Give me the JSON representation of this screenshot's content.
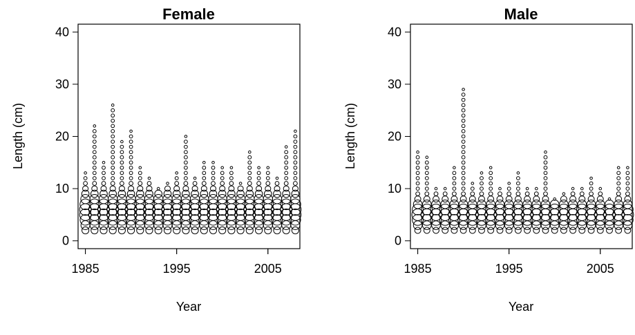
{
  "chart_data": [
    {
      "type": "scatter",
      "subtype": "bubble",
      "title": "Female",
      "xlabel": "Year",
      "ylabel": "Length (cm)",
      "xlim": [
        1984.2,
        2008.5
      ],
      "ylim": [
        -1.5,
        41.5
      ],
      "xticks": [
        1985,
        1995,
        2005
      ],
      "yticks": [
        0,
        10,
        20,
        30,
        40
      ],
      "grid": false,
      "marker": "open-circle",
      "size_encodes": "relative frequency of length in year",
      "years": [
        1985,
        1986,
        1987,
        1988,
        1989,
        1990,
        1991,
        1992,
        1993,
        1994,
        1995,
        1996,
        1997,
        1998,
        1999,
        2000,
        2001,
        2002,
        2003,
        2004,
        2005,
        2006,
        2007,
        2008
      ],
      "max_length": [
        13,
        22,
        15,
        26,
        19,
        21,
        14,
        12,
        10,
        11,
        13,
        20,
        12,
        15,
        15,
        14,
        14,
        11,
        17,
        14,
        14,
        12,
        18,
        21
      ]
    },
    {
      "type": "scatter",
      "subtype": "bubble",
      "title": "Male",
      "xlabel": "Year",
      "ylabel": "Length (cm)",
      "xlim": [
        1984.2,
        2008.5
      ],
      "ylim": [
        -1.5,
        41.5
      ],
      "xticks": [
        1985,
        1995,
        2005
      ],
      "yticks": [
        0,
        10,
        20,
        30,
        40
      ],
      "grid": false,
      "marker": "open-circle",
      "size_encodes": "relative frequency of length in year",
      "years": [
        1985,
        1986,
        1987,
        1988,
        1989,
        1990,
        1991,
        1992,
        1993,
        1994,
        1995,
        1996,
        1997,
        1998,
        1999,
        2000,
        2001,
        2002,
        2003,
        2004,
        2005,
        2006,
        2007,
        2008
      ],
      "max_length": [
        17,
        16,
        10,
        10,
        14,
        29,
        11,
        13,
        14,
        10,
        11,
        13,
        10,
        10,
        17,
        8,
        9,
        10,
        10,
        12,
        10,
        8,
        14,
        14
      ]
    }
  ]
}
